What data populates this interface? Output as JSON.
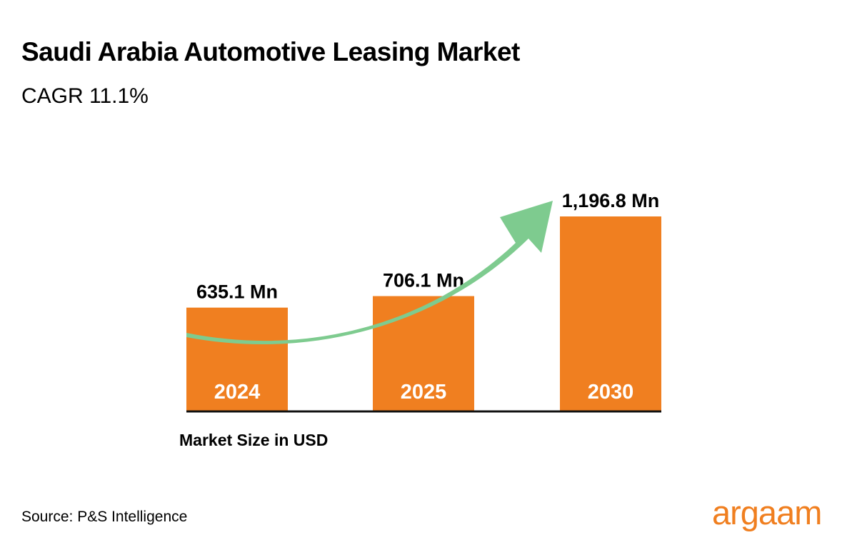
{
  "title": "Saudi Arabia Automotive Leasing Market",
  "subtitle": "CAGR 11.1%",
  "source": "Source: P&S Intelligence",
  "logo": "argaam",
  "colors": {
    "bar": "#F07F20",
    "arrow": "#7ECB8F",
    "axis": "#111111",
    "logo": "#F07F20",
    "text": "#000000"
  },
  "chart_data": {
    "type": "bar",
    "categories": [
      "2024",
      "2025",
      "2030"
    ],
    "values": [
      635.1,
      706.1,
      1196.8
    ],
    "data_labels": [
      "635.1 Mn",
      "706.1 Mn",
      "1,196.8 Mn"
    ],
    "xlabel": "Market Size in USD",
    "ylabel": "",
    "ylim": [
      0,
      1196.8
    ],
    "grid": false,
    "annotations": [
      "growth-arrow"
    ]
  }
}
